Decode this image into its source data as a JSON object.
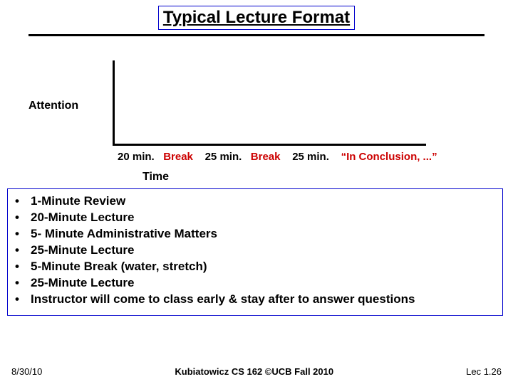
{
  "title": "Typical Lecture Format",
  "chart": {
    "y_label": "Attention",
    "x_label": "Time",
    "segments": [
      {
        "text": "20 min.",
        "color": "#000000"
      },
      {
        "text": "Break",
        "color": "#cc0000"
      },
      {
        "text": "25 min.",
        "color": "#000000"
      },
      {
        "text": "Break",
        "color": "#cc0000"
      },
      {
        "text": "25 min.",
        "color": "#000000"
      },
      {
        "text": "“In Conclusion, ...”",
        "color": "#cc0000"
      }
    ],
    "axis_color": "#000000",
    "background": "#ffffff"
  },
  "bullets": [
    "1-Minute Review",
    "20-Minute Lecture",
    "5- Minute Administrative Matters",
    "25-Minute Lecture",
    "5-Minute Break (water, stretch)",
    "25-Minute Lecture",
    "Instructor will come to class early & stay after to answer questions"
  ],
  "footer": {
    "left": "8/30/10",
    "mid": "Kubiatowicz CS 162 ©UCB Fall 2010",
    "right": "Lec 1.26"
  }
}
